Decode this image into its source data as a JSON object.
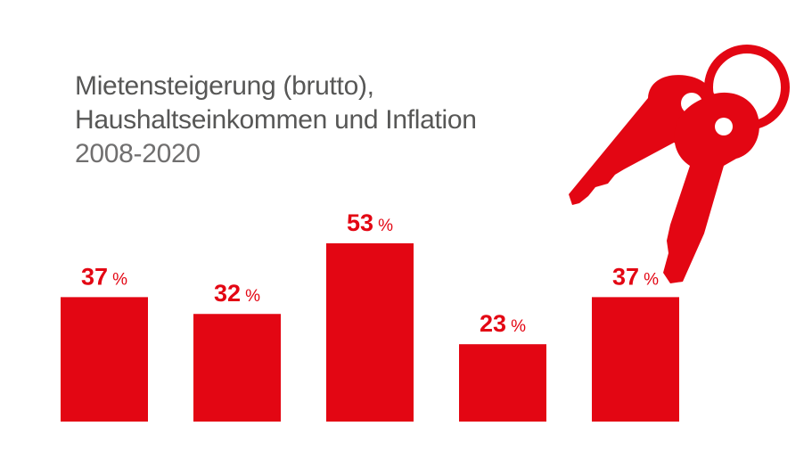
{
  "colors": {
    "accent": "#e30613",
    "title": "#575756",
    "subtitle": "#706f6f",
    "background": "#ffffff"
  },
  "header": {
    "title_line1": "Mietensteigerung (brutto),",
    "title_line2": "Haushaltseinkommen und Inflation",
    "period": "2008-2020"
  },
  "illustration": {
    "icon": "keys-icon"
  },
  "chart_data": {
    "type": "bar",
    "title": "Mietensteigerung (brutto), Haushaltseinkommen und Inflation",
    "subtitle": "2008-2020",
    "categories": [
      "",
      "",
      "",
      "",
      ""
    ],
    "values": [
      37,
      32,
      53,
      23,
      37
    ],
    "value_labels": [
      "37",
      "32",
      "53",
      "23",
      "37"
    ],
    "unit": "%",
    "xlabel": "",
    "ylabel": "",
    "ylim": [
      0,
      53
    ],
    "grid": false,
    "legend": "none"
  }
}
